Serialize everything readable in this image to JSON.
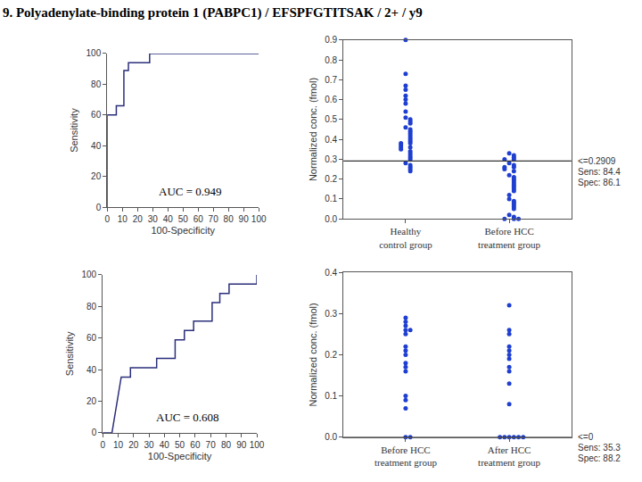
{
  "title": "9. Polyadenylate-binding protein 1 (PABPC1) / EFSPFGTITSAK / 2+ / y9",
  "chart_data": [
    {
      "type": "line",
      "x": [
        0,
        0,
        6,
        6,
        11,
        11,
        14,
        14,
        28,
        28,
        100
      ],
      "values": [
        0,
        60,
        60,
        66,
        66,
        89,
        89,
        94,
        94,
        100,
        100
      ],
      "color": "#2b2f7a",
      "xlabel": "100-Specificity",
      "ylabel": "Sensitivity",
      "xlim": [
        0,
        100
      ],
      "ylim": [
        0,
        100
      ],
      "xticks": [
        0,
        10,
        20,
        30,
        40,
        50,
        60,
        70,
        80,
        90,
        100
      ],
      "yticks": [
        0,
        20,
        40,
        60,
        80,
        100
      ],
      "annotations": [
        "AUC = 0.949"
      ],
      "grid": false
    },
    {
      "type": "dot",
      "categories": [
        "Healthy control group",
        "Before HCC treatment group"
      ],
      "values": [
        [
          0.9,
          0.73,
          0.67,
          0.65,
          0.62,
          0.6,
          0.58,
          0.54,
          0.51,
          0.5,
          0.49,
          0.48,
          0.46,
          0.45,
          0.44,
          0.43,
          0.42,
          0.41,
          0.4,
          0.39,
          0.38,
          0.38,
          0.37,
          0.36,
          0.36,
          0.35,
          0.34,
          0.33,
          0.32,
          0.31,
          0.3,
          0.28,
          0.27,
          0.26,
          0.25,
          0.24
        ],
        [
          0.33,
          0.32,
          0.31,
          0.3,
          0.3,
          0.28,
          0.27,
          0.26,
          0.26,
          0.25,
          0.24,
          0.22,
          0.21,
          0.2,
          0.19,
          0.18,
          0.17,
          0.16,
          0.15,
          0.14,
          0.12,
          0.1,
          0.09,
          0.08,
          0.07,
          0.06,
          0.05,
          0.02,
          0.01,
          0,
          0,
          0
        ]
      ],
      "color": "#1f3fd0",
      "ylabel": "Normalized conc. (fmol)",
      "ylim": [
        0,
        0.9
      ],
      "yticks": [
        {
          "value": 0,
          "label": "0.0"
        },
        0.1,
        0.2,
        0.3,
        0.4,
        0.5,
        0.6,
        0.7,
        0.8,
        0.9
      ],
      "threshold": 0.2909,
      "annotations": [
        "<=0.2909",
        "Sens: 84.4",
        "Spec: 86.1"
      ],
      "grid": false
    },
    {
      "type": "line",
      "x": [
        0,
        6,
        12,
        18,
        18,
        35,
        35,
        47,
        47,
        53,
        53,
        59,
        59,
        71,
        71,
        76,
        76,
        82,
        82,
        100,
        100
      ],
      "values": [
        0,
        0,
        35.3,
        35.3,
        41.2,
        41.2,
        47.1,
        47.1,
        58.8,
        58.8,
        64.7,
        64.7,
        70.6,
        70.6,
        82.4,
        82.4,
        88.2,
        88.2,
        94.1,
        94.1,
        100
      ],
      "color": "#2b2f7a",
      "xlabel": "100-Specificity",
      "ylabel": "Sensitivity",
      "xlim": [
        0,
        100
      ],
      "ylim": [
        0,
        100
      ],
      "xticks": [
        0,
        10,
        20,
        30,
        40,
        50,
        60,
        70,
        80,
        90,
        100
      ],
      "yticks": [
        0,
        20,
        40,
        60,
        80,
        100
      ],
      "annotations": [
        "AUC = 0.608"
      ],
      "grid": false
    },
    {
      "type": "dot",
      "categories": [
        "Before HCC treatment group",
        "After HCC treatment group"
      ],
      "values": [
        [
          0.29,
          0.28,
          0.27,
          0.26,
          0.26,
          0.25,
          0.22,
          0.21,
          0.2,
          0.18,
          0.17,
          0.16,
          0.1,
          0.09,
          0.07,
          0,
          0
        ],
        [
          0.32,
          0.26,
          0.25,
          0.22,
          0.21,
          0.2,
          0.19,
          0.17,
          0.16,
          0.13,
          0.08,
          0,
          0,
          0,
          0,
          0,
          0
        ]
      ],
      "color": "#1f3fd0",
      "ylabel": "Normalized conc. (fmol)",
      "ylim": [
        0,
        0.4
      ],
      "yticks": [
        {
          "value": 0,
          "label": "0.0"
        },
        0.1,
        0.2,
        0.3,
        0.4
      ],
      "threshold": 0,
      "annotations": [
        "<=0",
        "Sens: 35.3",
        "Spec: 88.2"
      ],
      "grid": false
    }
  ]
}
